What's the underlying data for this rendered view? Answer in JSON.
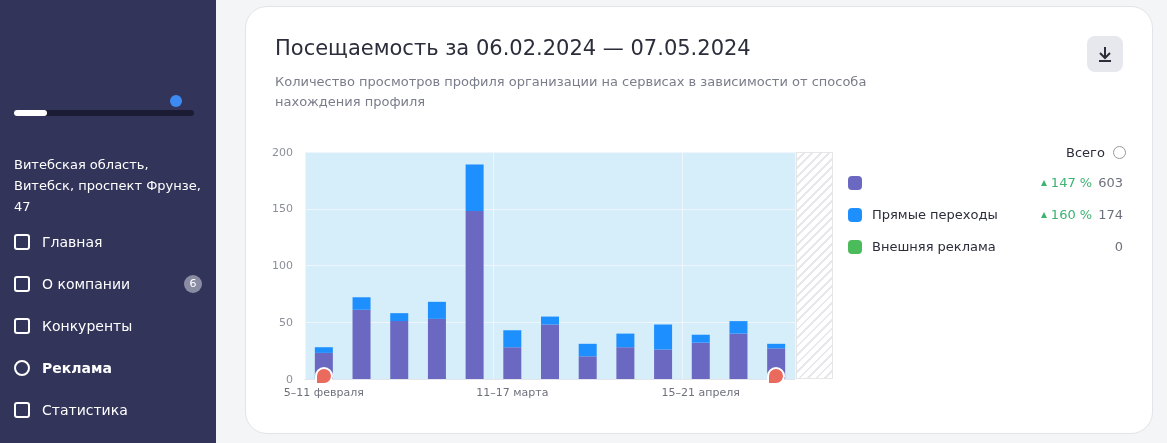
{
  "chart_data": {
    "type": "bar",
    "title": "Посещаемость за 06.02.2024 — 07.05.2024",
    "subtitle": "Количество просмотров профиля организации на сервисах в зависимости от способа нахождения профиля",
    "categories": [
      "5–11 февраля",
      null,
      null,
      null,
      null,
      "11–17 марта",
      null,
      null,
      null,
      null,
      "15–21 апреля",
      null,
      null
    ],
    "stacked": true,
    "series": [
      {
        "color": "#6b68c2",
        "values": [
          23,
          61,
          51,
          53,
          148,
          28,
          48,
          20,
          28,
          26,
          32,
          40,
          27
        ]
      },
      {
        "name": "Прямые переходы",
        "color": "#1e8fff",
        "values": [
          5,
          11,
          7,
          15,
          41,
          15,
          7,
          11,
          12,
          22,
          7,
          11,
          4
        ]
      },
      {
        "name": "Внешняя реклама",
        "color": "#4cbb5b",
        "values": [
          0,
          0,
          0,
          0,
          0,
          0,
          0,
          0,
          0,
          0,
          0,
          0,
          0
        ]
      }
    ],
    "ylim": [
      0,
      200
    ],
    "yticks": [
      0,
      50,
      100,
      150,
      200
    ],
    "grid": true,
    "legend": "right",
    "annotations": [
      "Всего",
      "147 %",
      "603",
      "160 %",
      "174",
      "0",
      "Витебская область, Витебск, проспект Фрунзе, 47",
      "Главная",
      "О компании",
      "6",
      "Конкуренты",
      "Реклама",
      "Статистика"
    ]
  }
}
